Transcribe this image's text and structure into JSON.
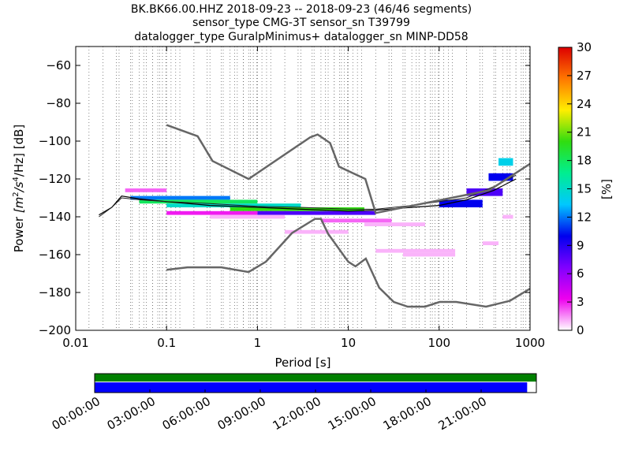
{
  "title_lines": [
    "BK.BK66.00.HHZ   2018-09-23 -- 2018-09-23  (46/46 segments)",
    "sensor_type CMG-3T sensor_sn T39799",
    "datalogger_type GuralpMinimus+ datalogger_sn MINP-DD58"
  ],
  "chart_data": [
    {
      "type": "heatmap",
      "subtype": "probabilistic power spectral density",
      "xlabel": "Period [s]",
      "ylabel_prefix": "Power ",
      "ylabel_unit_base": "[m",
      "ylabel_exp1": "2",
      "ylabel_mid": "/s",
      "ylabel_exp2": "4",
      "ylabel_end": "/Hz] [dB]",
      "xscale": "log",
      "xlim": [
        0.01,
        1000
      ],
      "ylim": [
        -200,
        -50
      ],
      "xticks": [
        {
          "v": 0.01,
          "label": "0.01"
        },
        {
          "v": 0.1,
          "label": "0.1"
        },
        {
          "v": 1,
          "label": "1"
        },
        {
          "v": 10,
          "label": "10"
        },
        {
          "v": 100,
          "label": "100"
        },
        {
          "v": 1000,
          "label": "1000"
        }
      ],
      "yticks": [
        {
          "v": -60,
          "label": "−60"
        },
        {
          "v": -80,
          "label": "−80"
        },
        {
          "v": -100,
          "label": "−100"
        },
        {
          "v": -120,
          "label": "−120"
        },
        {
          "v": -140,
          "label": "−140"
        },
        {
          "v": -160,
          "label": "−160"
        },
        {
          "v": -180,
          "label": "−180"
        },
        {
          "v": -200,
          "label": "−200"
        }
      ],
      "grid": "dotted vertical lines at period bins",
      "colorbar": {
        "label": "[%]",
        "range": [
          0,
          30
        ],
        "ticks": [
          {
            "v": 0,
            "label": "0"
          },
          {
            "v": 3,
            "label": "3"
          },
          {
            "v": 6,
            "label": "6"
          },
          {
            "v": 9,
            "label": "9"
          },
          {
            "v": 12,
            "label": "12"
          },
          {
            "v": 15,
            "label": "15"
          },
          {
            "v": 18,
            "label": "18"
          },
          {
            "v": 21,
            "label": "21"
          },
          {
            "v": 24,
            "label": "24"
          },
          {
            "v": 27,
            "label": "27"
          },
          {
            "v": 30,
            "label": "30"
          }
        ],
        "colormap": [
          "#ffffff",
          "#ee00ee",
          "#8000ff",
          "#0000ee",
          "#00c8ff",
          "#00ee90",
          "#30dd10",
          "#ffee00",
          "#ff7700",
          "#dd0000"
        ]
      },
      "noise_models": {
        "color": "#666666",
        "high_noise_model": [
          [
            0.1,
            -91.5
          ],
          [
            0.22,
            -97.4
          ],
          [
            0.32,
            -110.5
          ],
          [
            0.8,
            -120
          ],
          [
            3.8,
            -98
          ],
          [
            4.6,
            -96.5
          ],
          [
            6.3,
            -101
          ],
          [
            7.9,
            -113.5
          ],
          [
            15.4,
            -120
          ],
          [
            20,
            -138
          ],
          [
            354.8,
            -126
          ],
          [
            1000,
            -112
          ]
        ],
        "low_noise_model": [
          [
            0.1,
            -168
          ],
          [
            0.17,
            -166.7
          ],
          [
            0.4,
            -166.7
          ],
          [
            0.8,
            -169.2
          ],
          [
            1.24,
            -163.7
          ],
          [
            2.4,
            -148.6
          ],
          [
            4.3,
            -141.1
          ],
          [
            5,
            -141.1
          ],
          [
            6,
            -149
          ],
          [
            10,
            -163.8
          ],
          [
            12,
            -166.2
          ],
          [
            15.6,
            -162.1
          ],
          [
            21.9,
            -177.5
          ],
          [
            31.6,
            -185
          ],
          [
            45,
            -187.5
          ],
          [
            70,
            -187.5
          ],
          [
            101,
            -185
          ],
          [
            154,
            -185
          ],
          [
            328,
            -187.5
          ],
          [
            600,
            -184.4
          ],
          [
            1000,
            -178
          ]
        ]
      },
      "mean_curve": [
        [
          0.018,
          -140
        ],
        [
          0.025,
          -135
        ],
        [
          0.032,
          -130
        ],
        [
          0.05,
          -131
        ],
        [
          0.1,
          -132
        ],
        [
          0.3,
          -133
        ],
        [
          1,
          -134.5
        ],
        [
          3,
          -135
        ],
        [
          10,
          -136
        ],
        [
          20,
          -136
        ],
        [
          50,
          -134
        ],
        [
          100,
          -132
        ],
        [
          200,
          -130
        ],
        [
          400,
          -124
        ],
        [
          700,
          -118
        ]
      ],
      "mode_curve": [
        [
          0.018,
          -139
        ],
        [
          0.025,
          -135
        ],
        [
          0.032,
          -129
        ],
        [
          0.05,
          -130.5
        ],
        [
          0.1,
          -132
        ],
        [
          0.3,
          -134
        ],
        [
          1,
          -135
        ],
        [
          3,
          -136
        ],
        [
          10,
          -137
        ],
        [
          20,
          -136.5
        ],
        [
          50,
          -135
        ],
        [
          100,
          -134
        ],
        [
          200,
          -131
        ],
        [
          400,
          -126
        ],
        [
          700,
          -120
        ]
      ],
      "density_bands": [
        {
          "x0": 0.035,
          "x1": 0.1,
          "y0": -127,
          "y1": -125,
          "pct": 2
        },
        {
          "x0": 0.04,
          "x1": 0.5,
          "y0": -131,
          "y1": -129,
          "pct": 12
        },
        {
          "x0": 0.05,
          "x1": 1,
          "y0": -133,
          "y1": -131,
          "pct": 18
        },
        {
          "x0": 0.1,
          "x1": 3,
          "y0": -135,
          "y1": -133,
          "pct": 15
        },
        {
          "x0": 0.5,
          "x1": 15,
          "y0": -137,
          "y1": -135,
          "pct": 20
        },
        {
          "x0": 1,
          "x1": 20,
          "y0": -139,
          "y1": -137,
          "pct": 8
        },
        {
          "x0": 0.1,
          "x1": 1,
          "y0": -139,
          "y1": -137,
          "pct": 3
        },
        {
          "x0": 0.3,
          "x1": 2,
          "y0": -141,
          "y1": -139,
          "pct": 1
        },
        {
          "x0": 5,
          "x1": 30,
          "y0": -143,
          "y1": -141,
          "pct": 2
        },
        {
          "x0": 2,
          "x1": 10,
          "y0": -149,
          "y1": -147,
          "pct": 1
        },
        {
          "x0": 15,
          "x1": 70,
          "y0": -145,
          "y1": -143,
          "pct": 1
        },
        {
          "x0": 20,
          "x1": 150,
          "y0": -159,
          "y1": -157,
          "pct": 1
        },
        {
          "x0": 40,
          "x1": 150,
          "y0": -161,
          "y1": -159,
          "pct": 1
        },
        {
          "x0": 100,
          "x1": 300,
          "y0": -135,
          "y1": -131,
          "pct": 10
        },
        {
          "x0": 200,
          "x1": 500,
          "y0": -129,
          "y1": -125,
          "pct": 8
        },
        {
          "x0": 350,
          "x1": 650,
          "y0": -121,
          "y1": -117,
          "pct": 10
        },
        {
          "x0": 450,
          "x1": 650,
          "y0": -113,
          "y1": -109,
          "pct": 14
        },
        {
          "x0": 500,
          "x1": 650,
          "y0": -141,
          "y1": -139,
          "pct": 1
        },
        {
          "x0": 300,
          "x1": 450,
          "y0": -155,
          "y1": -153,
          "pct": 1
        }
      ]
    },
    {
      "type": "timeline",
      "description": "data coverage",
      "xlim_hours": [
        0,
        24
      ],
      "xtick_labels": [
        "00:00:00",
        "03:00:00",
        "06:00:00",
        "09:00:00",
        "12:00:00",
        "15:00:00",
        "18:00:00",
        "21:00:00"
      ],
      "bars": [
        {
          "name": "top",
          "color": "#008000",
          "start_h": 0,
          "end_h": 24
        },
        {
          "name": "bottom",
          "color": "#0000ff",
          "start_h": 0,
          "end_h": 23.5
        }
      ]
    }
  ]
}
